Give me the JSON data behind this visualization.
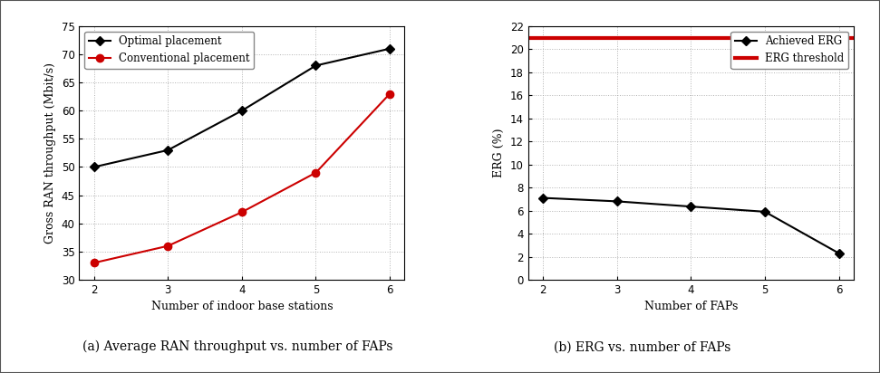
{
  "left": {
    "x": [
      2,
      3,
      4,
      5,
      6
    ],
    "optimal": [
      50.0,
      53.0,
      60.0,
      68.0,
      71.0
    ],
    "conventional": [
      33.0,
      36.0,
      42.0,
      49.0,
      63.0
    ],
    "ylim": [
      30,
      75
    ],
    "yticks": [
      30,
      35,
      40,
      45,
      50,
      55,
      60,
      65,
      70,
      75
    ],
    "xlabel": "Number of indoor base stations",
    "ylabel": "Gross RAN throughput (Mbit/s)",
    "legend_optimal": "Optimal placement",
    "legend_conventional": "Conventional placement",
    "line_color_optimal": "#000000",
    "line_color_conventional": "#cc0000",
    "caption": "(a) Average RAN throughput vs. number of FAPs"
  },
  "right": {
    "x": [
      2,
      3,
      4,
      5,
      6
    ],
    "achieved_erg": [
      7.1,
      6.8,
      6.35,
      5.9,
      2.3
    ],
    "erg_threshold": 21.0,
    "ylim": [
      0,
      22
    ],
    "yticks": [
      0,
      2,
      4,
      6,
      8,
      10,
      12,
      14,
      16,
      18,
      20,
      22
    ],
    "xlabel": "Number of FAPs",
    "ylabel": "ERG (%)",
    "legend_achieved": "Achieved ERG",
    "legend_threshold": "ERG threshold",
    "line_color_achieved": "#000000",
    "line_color_threshold": "#cc0000",
    "caption": "(b) ERG vs. number of FAPs"
  },
  "plot_bg": "#ffffff",
  "fig_bg": "#ffffff",
  "grid_color": "#aaaaaa",
  "grid_linestyle": ":",
  "border_color": "#000000"
}
